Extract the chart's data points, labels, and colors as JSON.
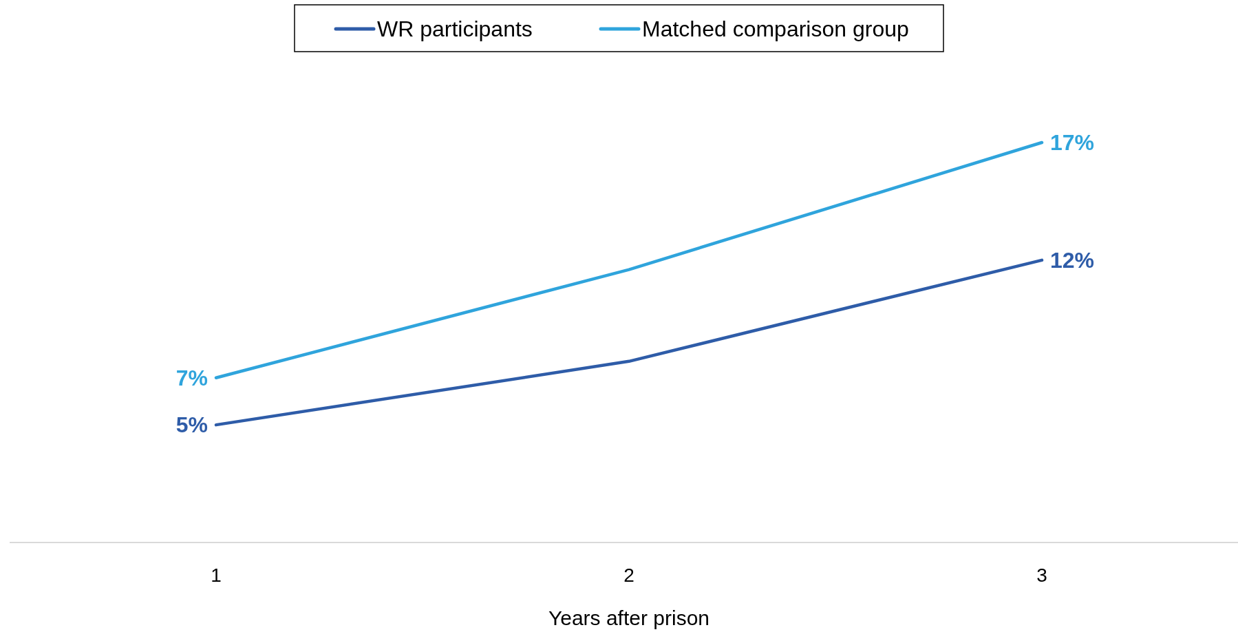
{
  "chart_data": {
    "type": "line",
    "xlabel": "Years after prison",
    "categories": [
      "1",
      "2",
      "3"
    ],
    "series": [
      {
        "name": "WR participants",
        "color": "#2e5ca8",
        "values": [
          5,
          7.7,
          12
        ],
        "value_labels": [
          "5%",
          null,
          "12%"
        ]
      },
      {
        "name": "Matched comparison group",
        "color": "#2fa4dc",
        "values": [
          7,
          11.6,
          17
        ],
        "value_labels": [
          "7%",
          null,
          "17%"
        ]
      }
    ],
    "legend": "top",
    "marker": "none",
    "line_style": "solid"
  }
}
